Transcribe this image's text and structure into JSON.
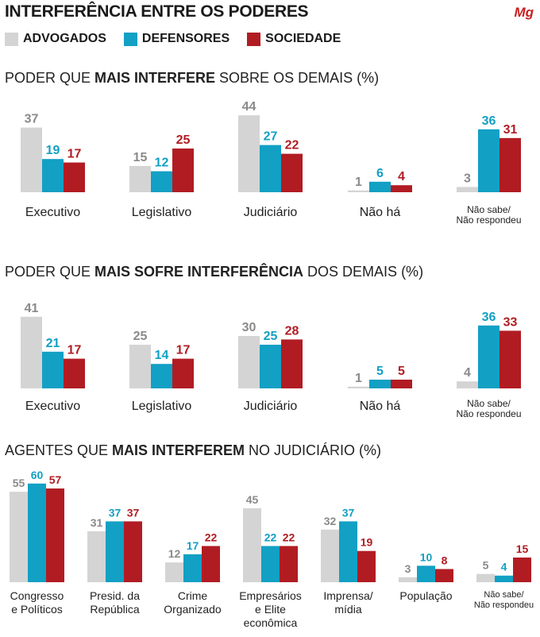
{
  "title": "INTERFERÊNCIA ENTRE OS PODERES",
  "logo": "Mg",
  "colors": {
    "advogados": "#d4d4d4",
    "defensores": "#12a0c4",
    "sociedade": "#b11c23",
    "label_gray": "#8a8a8a"
  },
  "legend": [
    {
      "name": "ADVOGADOS",
      "color": "#d4d4d4"
    },
    {
      "name": "DEFENSORES",
      "color": "#12a0c4"
    },
    {
      "name": "SOCIEDADE",
      "color": "#b11c23"
    }
  ],
  "sections": [
    {
      "pre": "PODER QUE ",
      "bold": "MAIS INTERFERE",
      "post": " SOBRE OS DEMAIS (%)"
    },
    {
      "pre": "PODER QUE ",
      "bold": "MAIS SOFRE INTERFERÊNCIA",
      "post": " DOS DEMAIS (%)"
    },
    {
      "pre": "AGENTES QUE ",
      "bold": "MAIS INTERFEREM",
      "post": " NO JUDICIÁRIO (%)"
    }
  ],
  "chart_data": [
    {
      "type": "bar",
      "title": "PODER QUE MAIS INTERFERE SOBRE OS DEMAIS (%)",
      "categories": [
        [
          "Executivo"
        ],
        [
          "Legislativo"
        ],
        [
          "Judiciário"
        ],
        [
          "Não há"
        ],
        [
          "Não sabe/",
          "Não respondeu"
        ]
      ],
      "series": [
        {
          "name": "ADVOGADOS",
          "values": [
            37,
            15,
            44,
            1,
            3
          ]
        },
        {
          "name": "DEFENSORES",
          "values": [
            19,
            12,
            27,
            6,
            36
          ]
        },
        {
          "name": "SOCIEDADE",
          "values": [
            17,
            25,
            22,
            4,
            31
          ]
        }
      ]
    },
    {
      "type": "bar",
      "title": "PODER QUE MAIS SOFRE INTERFERÊNCIA DOS DEMAIS (%)",
      "categories": [
        [
          "Executivo"
        ],
        [
          "Legislativo"
        ],
        [
          "Judiciário"
        ],
        [
          "Não há"
        ],
        [
          "Não sabe/",
          "Não respondeu"
        ]
      ],
      "series": [
        {
          "name": "ADVOGADOS",
          "values": [
            41,
            25,
            30,
            1,
            4
          ]
        },
        {
          "name": "DEFENSORES",
          "values": [
            21,
            14,
            25,
            5,
            36
          ]
        },
        {
          "name": "SOCIEDADE",
          "values": [
            17,
            17,
            28,
            5,
            33
          ]
        }
      ]
    },
    {
      "type": "bar",
      "title": "AGENTES QUE MAIS INTERFEREM NO JUDICIÁRIO (%)",
      "categories": [
        [
          "Congresso",
          "e Políticos"
        ],
        [
          "Presid. da",
          "República"
        ],
        [
          "Crime",
          "Organizado"
        ],
        [
          "Empresários",
          "e Elite",
          "econômica"
        ],
        [
          "Imprensa/",
          "mídia"
        ],
        [
          "População"
        ],
        [
          "Não sabe/",
          "Não respondeu"
        ]
      ],
      "series": [
        {
          "name": "ADVOGADOS",
          "values": [
            55,
            31,
            12,
            45,
            32,
            3,
            5
          ]
        },
        {
          "name": "DEFENSORES",
          "values": [
            60,
            37,
            17,
            22,
            37,
            10,
            4
          ]
        },
        {
          "name": "SOCIEDADE",
          "values": [
            57,
            37,
            22,
            22,
            19,
            8,
            15
          ]
        }
      ]
    }
  ]
}
